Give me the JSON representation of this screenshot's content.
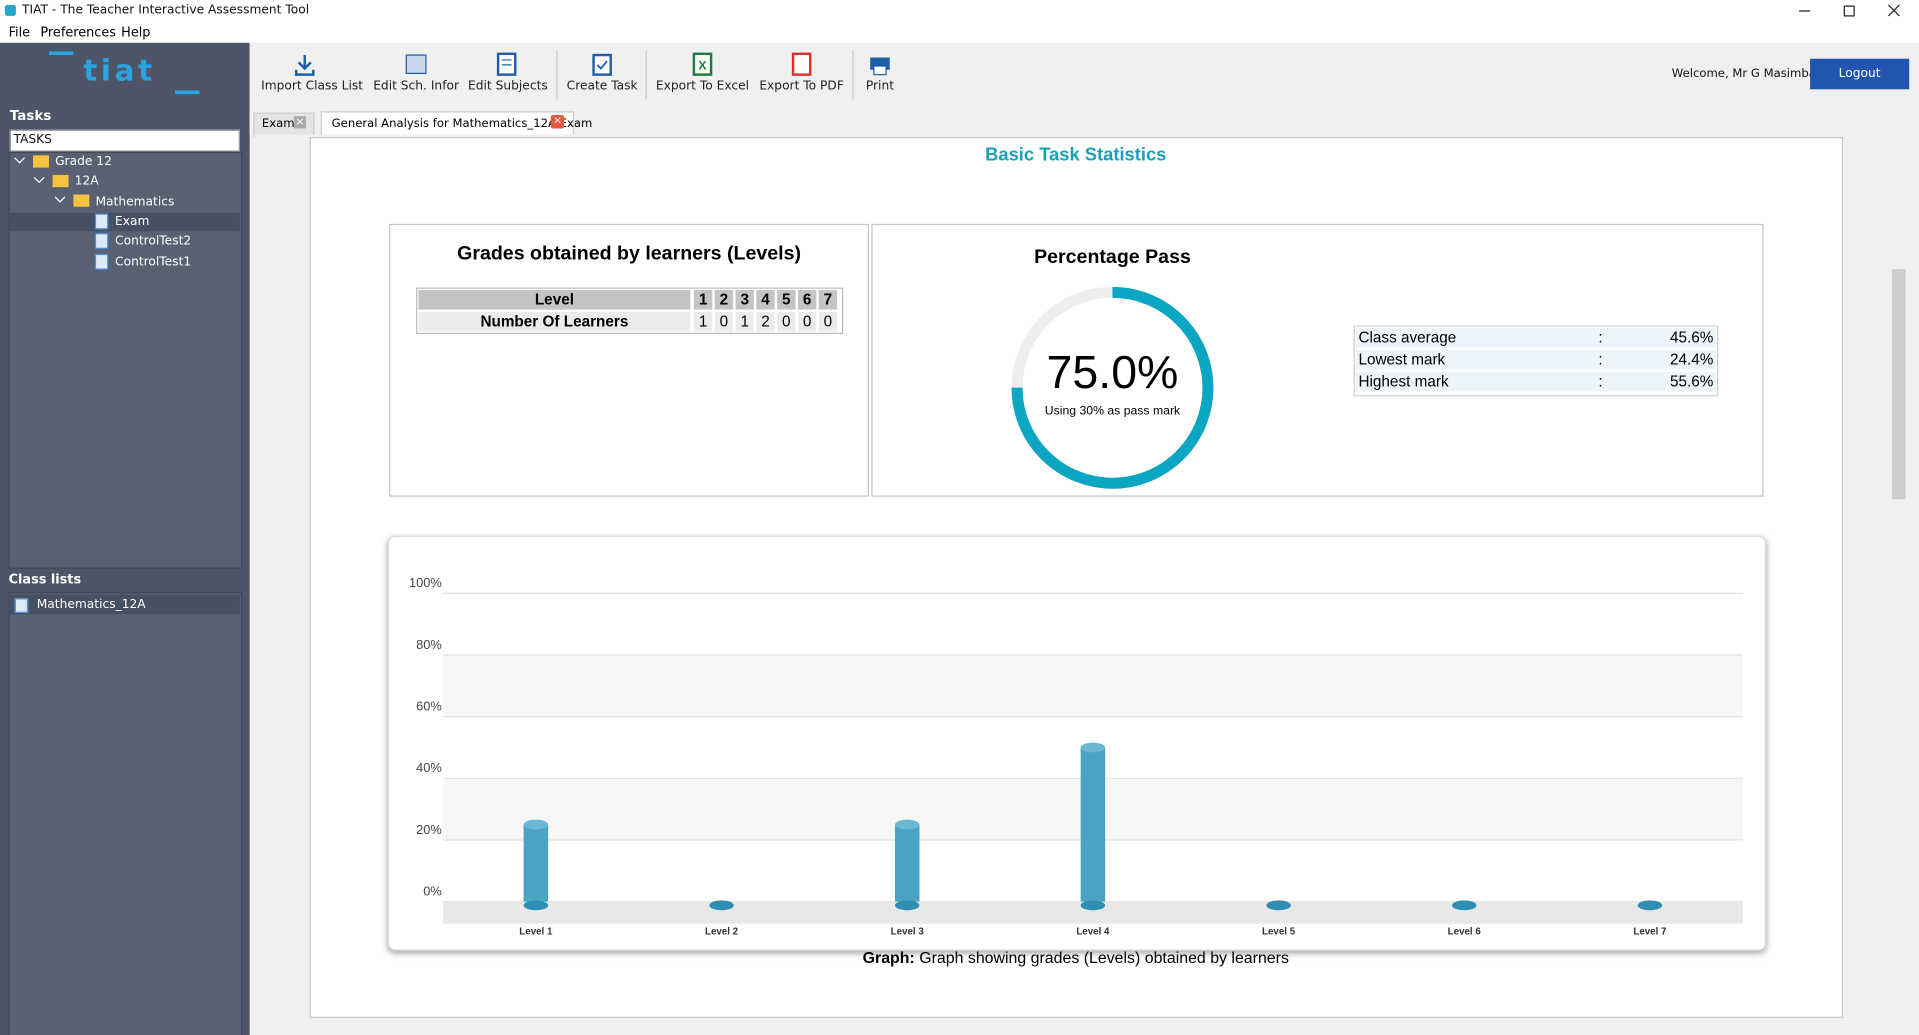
{
  "window": {
    "title": "TIAT - The Teacher Interactive Assessment Tool"
  },
  "menu": [
    "File",
    "Preferences",
    "Help"
  ],
  "sidebar": {
    "logo": "tiat",
    "tasks_label": "Tasks",
    "search": "TASKS",
    "tree": [
      "Grade 12",
      "12A",
      "Mathematics",
      "Exam",
      "ControlTest2",
      "ControlTest1"
    ],
    "class_lists_label": "Class lists",
    "class_lists": [
      "Mathematics_12A"
    ]
  },
  "toolbar": [
    "Import Class List",
    "Edit Sch. Infor",
    "Edit Subjects",
    "Create Task",
    "Export To Excel",
    "Export To PDF",
    "Print"
  ],
  "user": {
    "welcome": "Welcome, Mr G Masimba",
    "logout": "Logout"
  },
  "tabs": [
    "Exam",
    "General Analysis for Mathematics_12A Exam"
  ],
  "heading": "Basic Task Statistics",
  "grades_table": {
    "title": "Grades obtained by learners (Levels)",
    "header_label": "Level",
    "levels": [
      1,
      2,
      3,
      4,
      5,
      6,
      7
    ],
    "row_label": "Number Of Learners",
    "counts": [
      1,
      0,
      1,
      2,
      0,
      0,
      0
    ]
  },
  "percentage_pass": {
    "title": "Percentage Pass",
    "value": 75,
    "value_label": "75.0%",
    "note": "Using 30% as pass mark",
    "color": "#0aa6c2"
  },
  "stats": [
    {
      "label": "Class average",
      "separator": ":",
      "value": "45.6%"
    },
    {
      "label": "Lowest mark",
      "separator": ":",
      "value": "24.4%"
    },
    {
      "label": "Highest mark",
      "separator": ":",
      "value": "55.6%"
    }
  ],
  "chart_data": {
    "type": "bar",
    "categories": [
      "Level 1",
      "Level 2",
      "Level 3",
      "Level 4",
      "Level 5",
      "Level 6",
      "Level 7"
    ],
    "values": [
      25,
      0,
      25,
      50,
      0,
      0,
      0
    ],
    "color": "#4aa3c2",
    "ylim": [
      0,
      100
    ],
    "yticks": [
      {
        "value": 0,
        "label": "0%"
      },
      {
        "value": 20,
        "label": "20%"
      },
      {
        "value": 40,
        "label": "40%"
      },
      {
        "value": 60,
        "label": "60%"
      },
      {
        "value": 80,
        "label": "80%"
      },
      {
        "value": 100,
        "label": "100%"
      }
    ],
    "grid": true,
    "caption_label": "Graph:",
    "caption": "Graph showing grades (Levels) obtained by learners"
  }
}
